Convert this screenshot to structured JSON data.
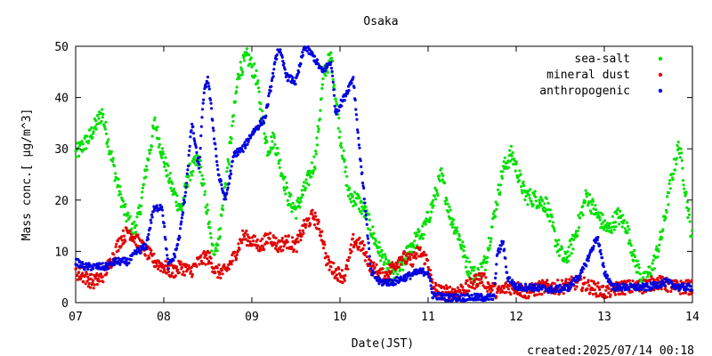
{
  "chart_data": {
    "type": "scatter",
    "title": "Osaka",
    "xlabel": "Date(JST)",
    "ylabel": "Mass conc.[ μg/m^3]",
    "ylim": [
      0,
      50
    ],
    "yticks": [
      0,
      10,
      20,
      30,
      40,
      50
    ],
    "xlim": [
      7,
      14
    ],
    "xticks": [
      "07",
      "08",
      "09",
      "10",
      "11",
      "12",
      "13",
      "14"
    ],
    "legend_position": "top-right",
    "grid": false,
    "series": [
      {
        "name": "sea-salt",
        "color": "#00e000",
        "keypoints": [
          [
            7.0,
            29
          ],
          [
            7.15,
            32
          ],
          [
            7.3,
            37
          ],
          [
            7.45,
            25
          ],
          [
            7.55,
            18
          ],
          [
            7.65,
            14
          ],
          [
            7.72,
            17
          ],
          [
            7.8,
            26
          ],
          [
            7.9,
            35
          ],
          [
            8.0,
            28
          ],
          [
            8.1,
            22
          ],
          [
            8.2,
            18
          ],
          [
            8.28,
            25
          ],
          [
            8.4,
            28
          ],
          [
            8.5,
            17
          ],
          [
            8.55,
            10
          ],
          [
            8.62,
            12
          ],
          [
            8.75,
            30
          ],
          [
            8.85,
            45
          ],
          [
            8.95,
            48
          ],
          [
            9.05,
            44
          ],
          [
            9.1,
            38
          ],
          [
            9.18,
            30
          ],
          [
            9.25,
            32
          ],
          [
            9.32,
            27
          ],
          [
            9.42,
            20
          ],
          [
            9.5,
            18
          ],
          [
            9.62,
            23
          ],
          [
            9.72,
            28
          ],
          [
            9.82,
            45
          ],
          [
            9.9,
            48
          ],
          [
            10.0,
            33
          ],
          [
            10.1,
            21
          ],
          [
            10.2,
            20
          ],
          [
            10.3,
            17
          ],
          [
            10.4,
            12
          ],
          [
            10.5,
            8
          ],
          [
            10.6,
            5
          ],
          [
            10.7,
            7
          ],
          [
            10.8,
            11
          ],
          [
            10.95,
            14
          ],
          [
            11.05,
            19
          ],
          [
            11.15,
            25
          ],
          [
            11.25,
            17
          ],
          [
            11.35,
            13
          ],
          [
            11.45,
            7
          ],
          [
            11.55,
            5
          ],
          [
            11.65,
            8
          ],
          [
            11.75,
            17
          ],
          [
            11.85,
            26
          ],
          [
            11.95,
            29
          ],
          [
            12.1,
            21
          ],
          [
            12.25,
            20
          ],
          [
            12.35,
            19
          ],
          [
            12.45,
            12
          ],
          [
            12.55,
            8
          ],
          [
            12.65,
            12
          ],
          [
            12.8,
            21
          ],
          [
            12.92,
            17
          ],
          [
            13.05,
            14
          ],
          [
            13.15,
            17
          ],
          [
            13.25,
            15
          ],
          [
            13.35,
            8
          ],
          [
            13.45,
            4
          ],
          [
            13.55,
            7
          ],
          [
            13.65,
            13
          ],
          [
            13.75,
            23
          ],
          [
            13.85,
            31
          ],
          [
            13.95,
            18
          ],
          [
            14.0,
            12
          ]
        ]
      },
      {
        "name": "mineral dust",
        "color": "#e00000",
        "keypoints": [
          [
            7.0,
            6
          ],
          [
            7.1,
            5
          ],
          [
            7.2,
            4
          ],
          [
            7.3,
            5
          ],
          [
            7.4,
            8
          ],
          [
            7.5,
            12
          ],
          [
            7.6,
            14
          ],
          [
            7.7,
            12
          ],
          [
            7.8,
            10
          ],
          [
            7.9,
            8
          ],
          [
            8.0,
            7
          ],
          [
            8.1,
            6
          ],
          [
            8.2,
            7
          ],
          [
            8.3,
            6
          ],
          [
            8.4,
            8
          ],
          [
            8.5,
            9
          ],
          [
            8.6,
            6
          ],
          [
            8.7,
            6
          ],
          [
            8.8,
            9
          ],
          [
            8.9,
            13
          ],
          [
            9.0,
            12
          ],
          [
            9.1,
            11
          ],
          [
            9.2,
            13
          ],
          [
            9.3,
            11
          ],
          [
            9.4,
            12
          ],
          [
            9.5,
            11
          ],
          [
            9.6,
            15
          ],
          [
            9.7,
            17
          ],
          [
            9.8,
            13
          ],
          [
            9.85,
            8
          ],
          [
            9.95,
            6
          ],
          [
            10.05,
            5
          ],
          [
            10.1,
            8
          ],
          [
            10.15,
            12
          ],
          [
            10.25,
            11
          ],
          [
            10.35,
            7
          ],
          [
            10.5,
            5
          ],
          [
            10.6,
            7
          ],
          [
            10.7,
            9
          ],
          [
            10.8,
            8
          ],
          [
            10.9,
            10
          ],
          [
            11.0,
            8
          ],
          [
            11.05,
            3
          ],
          [
            11.15,
            2
          ],
          [
            11.3,
            2
          ],
          [
            11.45,
            3
          ],
          [
            11.6,
            5
          ],
          [
            11.7,
            3
          ],
          [
            11.8,
            2
          ],
          [
            11.9,
            3
          ],
          [
            12.0,
            3
          ],
          [
            12.1,
            2
          ],
          [
            12.3,
            3
          ],
          [
            12.5,
            3
          ],
          [
            12.7,
            4
          ],
          [
            12.85,
            3
          ],
          [
            13.0,
            2
          ],
          [
            13.2,
            3
          ],
          [
            13.4,
            3
          ],
          [
            13.6,
            4
          ],
          [
            13.8,
            3
          ],
          [
            14.0,
            3
          ]
        ]
      },
      {
        "name": "anthropogenic",
        "color": "#0000e0",
        "keypoints": [
          [
            7.0,
            8
          ],
          [
            7.1,
            7
          ],
          [
            7.2,
            7
          ],
          [
            7.35,
            7
          ],
          [
            7.45,
            8
          ],
          [
            7.6,
            8
          ],
          [
            7.7,
            10
          ],
          [
            7.8,
            11
          ],
          [
            7.88,
            18
          ],
          [
            7.98,
            19
          ],
          [
            8.05,
            7
          ],
          [
            8.12,
            9
          ],
          [
            8.18,
            13
          ],
          [
            8.25,
            22
          ],
          [
            8.32,
            35
          ],
          [
            8.4,
            26
          ],
          [
            8.45,
            40
          ],
          [
            8.5,
            44
          ],
          [
            8.55,
            36
          ],
          [
            8.62,
            25
          ],
          [
            8.7,
            20
          ],
          [
            8.8,
            29
          ],
          [
            8.9,
            30
          ],
          [
            9.0,
            33
          ],
          [
            9.15,
            36
          ],
          [
            9.3,
            50
          ],
          [
            9.4,
            44
          ],
          [
            9.5,
            43
          ],
          [
            9.6,
            50
          ],
          [
            9.7,
            48
          ],
          [
            9.8,
            45
          ],
          [
            9.9,
            47
          ],
          [
            9.95,
            37
          ],
          [
            10.05,
            40
          ],
          [
            10.15,
            44
          ],
          [
            10.22,
            30
          ],
          [
            10.28,
            20
          ],
          [
            10.35,
            6
          ],
          [
            10.45,
            4
          ],
          [
            10.6,
            4
          ],
          [
            10.75,
            5
          ],
          [
            10.9,
            6
          ],
          [
            11.0,
            6
          ],
          [
            11.05,
            1.5
          ],
          [
            11.2,
            1
          ],
          [
            11.4,
            1
          ],
          [
            11.6,
            1
          ],
          [
            11.75,
            1
          ],
          [
            11.78,
            9
          ],
          [
            11.85,
            12
          ],
          [
            11.9,
            5
          ],
          [
            12.0,
            3
          ],
          [
            12.2,
            3
          ],
          [
            12.4,
            2.5
          ],
          [
            12.6,
            3
          ],
          [
            12.75,
            6
          ],
          [
            12.85,
            10
          ],
          [
            12.92,
            13
          ],
          [
            13.0,
            6
          ],
          [
            13.1,
            3
          ],
          [
            13.3,
            3
          ],
          [
            13.5,
            3
          ],
          [
            13.7,
            4
          ],
          [
            13.85,
            3
          ],
          [
            14.0,
            3
          ]
        ]
      }
    ]
  },
  "footer": {
    "created": "created:2025/07/14 00:18"
  }
}
